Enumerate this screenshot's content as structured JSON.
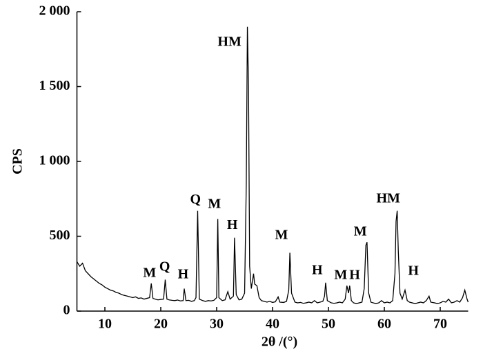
{
  "chart_data": {
    "type": "line",
    "xlabel": "2θ /(°)",
    "ylabel": "CPS",
    "color": "#000000",
    "xlim": [
      5,
      75
    ],
    "ylim": [
      0,
      2000
    ],
    "xticks": [
      10,
      20,
      30,
      40,
      50,
      60,
      70
    ],
    "yticks": [
      0,
      500,
      {
        "value": 1000,
        "label": "1 000"
      },
      {
        "value": 1500,
        "label": "1 500"
      },
      {
        "value": 2000,
        "label": "2 000"
      }
    ],
    "x": [
      5,
      5.5,
      6,
      6.5,
      7,
      7.5,
      8,
      8.5,
      9,
      9.5,
      10,
      10.5,
      11,
      11.5,
      12,
      12.5,
      13,
      13.5,
      14,
      14.5,
      15,
      15.5,
      16,
      16.5,
      17,
      17.5,
      18,
      18.3,
      18.6,
      19,
      19.5,
      20,
      20.5,
      20.8,
      21.1,
      21.5,
      22,
      22.5,
      23,
      23.5,
      24,
      24.2,
      24.5,
      25,
      25.5,
      26,
      26.3,
      26.6,
      26.9,
      27.5,
      28,
      28.5,
      29,
      29.5,
      30,
      30.2,
      30.4,
      31,
      31.5,
      32,
      32.4,
      33,
      33.2,
      33.5,
      34,
      34.5,
      35,
      35.3,
      35.5,
      35.7,
      35.9,
      36.2,
      36.6,
      36.8,
      37.2,
      37.6,
      38,
      38.5,
      39,
      39.5,
      40,
      40.5,
      41,
      41.3,
      42,
      42.5,
      42.9,
      43.1,
      43.4,
      44,
      44.5,
      45,
      45.5,
      46,
      46.5,
      47,
      47.5,
      48,
      48.5,
      49,
      49.3,
      49.5,
      49.8,
      50.5,
      51,
      51.5,
      52,
      52.5,
      53,
      53.3,
      53.6,
      53.8,
      54.1,
      54.5,
      55,
      55.5,
      56,
      56.4,
      56.7,
      56.9,
      57.2,
      57.6,
      58,
      58.5,
      59,
      59.5,
      60,
      60.5,
      61,
      61.5,
      61.9,
      62.1,
      62.3,
      62.5,
      62.8,
      63.2,
      63.7,
      64.1,
      64.5,
      65,
      65.5,
      66,
      66.5,
      67,
      67.5,
      68,
      68.3,
      69,
      69.5,
      70,
      70.5,
      71,
      71.5,
      72,
      72.5,
      73,
      73.5,
      74,
      74.4,
      74.8,
      75
    ],
    "values": [
      330,
      300,
      320,
      270,
      250,
      230,
      215,
      200,
      185,
      175,
      160,
      150,
      140,
      135,
      125,
      120,
      110,
      105,
      100,
      95,
      90,
      95,
      85,
      88,
      80,
      85,
      90,
      185,
      85,
      80,
      75,
      78,
      80,
      210,
      80,
      75,
      72,
      70,
      74,
      68,
      70,
      150,
      70,
      72,
      65,
      70,
      90,
      670,
      80,
      70,
      65,
      70,
      68,
      72,
      90,
      615,
      90,
      70,
      75,
      130,
      80,
      100,
      490,
      110,
      75,
      80,
      120,
      850,
      1900,
      1500,
      300,
      150,
      250,
      180,
      170,
      90,
      70,
      65,
      60,
      65,
      58,
      62,
      95,
      60,
      58,
      65,
      140,
      390,
      120,
      60,
      55,
      58,
      52,
      55,
      60,
      55,
      70,
      55,
      60,
      65,
      100,
      190,
      70,
      55,
      52,
      55,
      60,
      55,
      80,
      170,
      120,
      170,
      70,
      55,
      50,
      55,
      60,
      150,
      440,
      460,
      120,
      60,
      55,
      50,
      55,
      70,
      55,
      60,
      55,
      70,
      250,
      600,
      670,
      400,
      120,
      80,
      140,
      70,
      60,
      55,
      50,
      55,
      60,
      55,
      70,
      100,
      60,
      55,
      50,
      55,
      65,
      60,
      80,
      55,
      60,
      70,
      60,
      90,
      140,
      80,
      60
    ],
    "annotations": [
      {
        "text": "M",
        "x": 18,
        "y": 250
      },
      {
        "text": "Q",
        "x": 20.7,
        "y": 290
      },
      {
        "text": "H",
        "x": 24,
        "y": 240
      },
      {
        "text": "Q",
        "x": 26.2,
        "y": 740
      },
      {
        "text": "M",
        "x": 29.6,
        "y": 710
      },
      {
        "text": "H",
        "x": 32.8,
        "y": 570
      },
      {
        "text": "HM",
        "x": 32.3,
        "y": 1793
      },
      {
        "text": "M",
        "x": 41.6,
        "y": 502
      },
      {
        "text": "H",
        "x": 48,
        "y": 267
      },
      {
        "text": "M",
        "x": 52.2,
        "y": 235
      },
      {
        "text": "H",
        "x": 54.7,
        "y": 235
      },
      {
        "text": "M",
        "x": 55.7,
        "y": 525
      },
      {
        "text": "HM",
        "x": 60.7,
        "y": 747
      },
      {
        "text": "H",
        "x": 65.2,
        "y": 263
      }
    ]
  }
}
